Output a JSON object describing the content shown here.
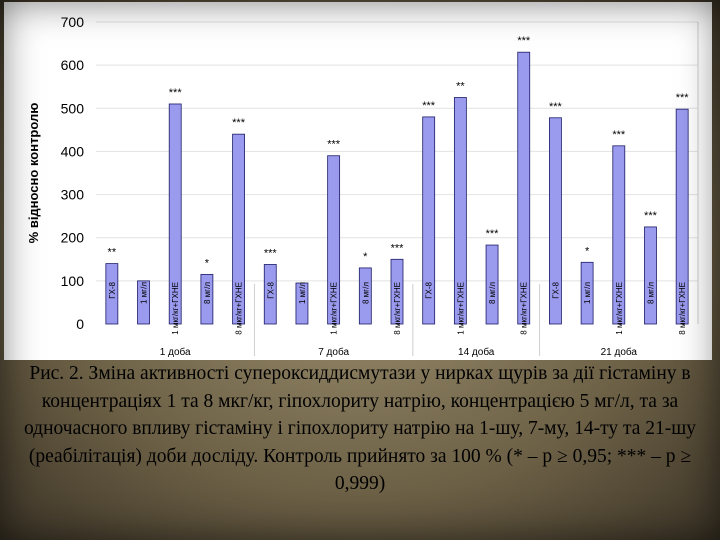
{
  "chart_data": {
    "type": "bar",
    "ylabel": "% відносно контролю",
    "ylim": [
      0,
      700
    ],
    "y_ticks": [
      0,
      100,
      200,
      300,
      400,
      500,
      600,
      700
    ],
    "grid": true,
    "bar_color": "#9a9aee",
    "categories": [
      "ГХ-8",
      "1 мг/л",
      "1 мкг/кг+ГХНЕ",
      "8 мг/л",
      "8 мкг/кг+ГХНЕ",
      "ГХ-8",
      "1 мг/л",
      "1 мкг/кг+ГХНЕ",
      "8 мг/л",
      "8 мкг/кг+ГХНЕ",
      "ГХ-8",
      "1 мкг/кг+ГХНЕ",
      "8 мг/л",
      "8 мкг/кг+ГХНЕ",
      "ГХ-8",
      "1 мг/л",
      "1 мкг/кг+ГХНЕ",
      "8 мг/л",
      "8 мкг/кг+ГХНЕ"
    ],
    "values": [
      140,
      100,
      510,
      115,
      440,
      138,
      95,
      390,
      130,
      150,
      480,
      525,
      183,
      630,
      478,
      143,
      413,
      225,
      498
    ],
    "annotations": [
      "**",
      "",
      "***",
      "*",
      "***",
      "***",
      "",
      "***",
      "*",
      "***",
      "***",
      "**",
      "***",
      "***",
      "***",
      "*",
      "***",
      "***",
      "***"
    ],
    "groups": [
      "1 доба",
      "7 доба",
      "14 доба",
      "21 доба"
    ],
    "group_sizes": [
      5,
      5,
      4,
      5
    ]
  },
  "caption": "Рис. 2. Зміна активності супероксиддисмутази у нирках щурів за дії гістаміну в концентраціях 1 та 8 мкг/кг, гіпохлориту натрію, концентрацією 5 мг/л, та за одночасного впливу гістаміну і гіпохлориту натрію на 1-шу, 7-му, 14-ту та 21-шу (реабілітація) доби досліду. Контроль прийнято за 100 % (* – p ≥ 0,95; *** – p ≥ 0,999)"
}
